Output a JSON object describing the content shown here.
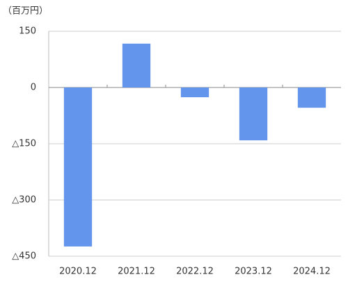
{
  "chart_data": {
    "type": "bar",
    "y_label": "（百万円）",
    "categories": [
      "2020.12",
      "2021.12",
      "2022.12",
      "2023.12",
      "2024.12"
    ],
    "values": [
      -424,
      117,
      -26,
      -141,
      -54
    ],
    "color": "#6495ed",
    "ylim": [
      -450,
      150
    ],
    "yticks": [
      150,
      0,
      {
        "value": -150,
        "label": "△150"
      },
      {
        "value": -300,
        "label": "△300"
      },
      {
        "value": -450,
        "label": "△450"
      }
    ],
    "grid": true
  }
}
